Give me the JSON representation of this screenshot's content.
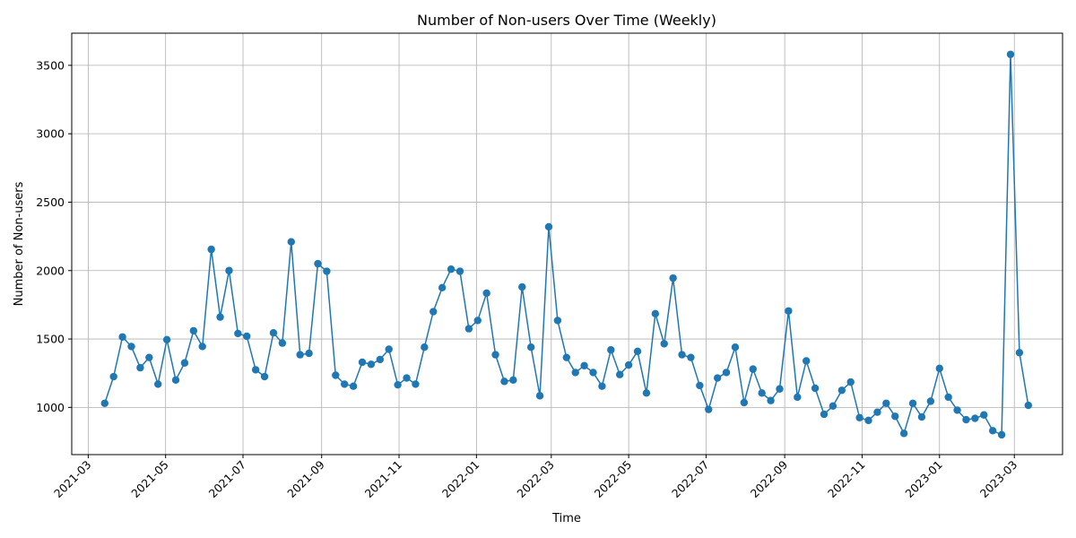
{
  "chart_data": {
    "type": "line",
    "title": "Number of Non-users Over Time (Weekly)",
    "xlabel": "Time",
    "ylabel": "Number of Non-users",
    "grid": true,
    "marker": "circle",
    "colors": {
      "series": "#1f77b4"
    },
    "x_start": "2021-03-14",
    "x_interval_days": 7,
    "xlim": [
      "2021-02-16",
      "2023-04-08"
    ],
    "ylim": [
      655,
      3735
    ],
    "yticks": [
      1000,
      1500,
      2000,
      2500,
      3000,
      3500
    ],
    "xticks": [
      "2021-03",
      "2021-05",
      "2021-07",
      "2021-09",
      "2021-11",
      "2022-01",
      "2022-03",
      "2022-05",
      "2022-07",
      "2022-09",
      "2022-11",
      "2023-01",
      "2023-03"
    ],
    "series": [
      {
        "values": [
          1030,
          1225,
          1515,
          1445,
          1290,
          1365,
          1170,
          1495,
          1200,
          1325,
          1560,
          1445,
          2155,
          1660,
          2000,
          1540,
          1520,
          1275,
          1225,
          1545,
          1470,
          2210,
          1385,
          1395,
          2050,
          1995,
          1235,
          1170,
          1155,
          1330,
          1315,
          1350,
          1425,
          1165,
          1215,
          1170,
          1440,
          1700,
          1875,
          2010,
          1995,
          1575,
          1635,
          1835,
          1385,
          1190,
          1200,
          1880,
          1440,
          1085,
          2320,
          1635,
          1365,
          1255,
          1305,
          1255,
          1155,
          1420,
          1240,
          1310,
          1410,
          1105,
          1685,
          1465,
          1945,
          1385,
          1365,
          1160,
          985,
          1215,
          1255,
          1440,
          1035,
          1280,
          1105,
          1050,
          1135,
          1705,
          1075,
          1340,
          1140,
          950,
          1010,
          1125,
          1185,
          925,
          905,
          965,
          1030,
          935,
          810,
          1030,
          930,
          1045,
          1285,
          1075,
          980,
          910,
          920,
          945,
          830,
          800,
          3580,
          1400,
          1015
        ]
      }
    ]
  }
}
